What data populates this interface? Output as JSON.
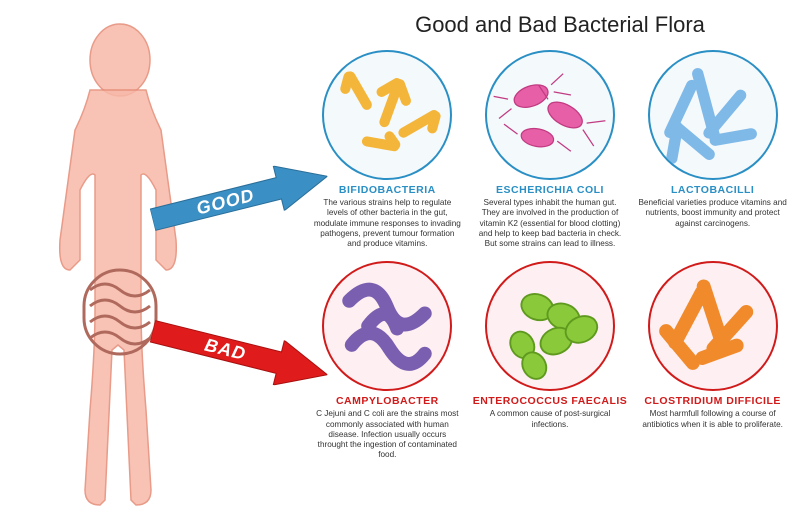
{
  "title": "Good and Bad Bacterial Flora",
  "arrows": {
    "good": {
      "label": "GOOD",
      "fill": "#3a8fc4",
      "stroke": "#2a6e99"
    },
    "bad": {
      "label": "BAD",
      "fill": "#e01b1b",
      "stroke": "#a81010"
    }
  },
  "figure": {
    "body_fill": "#f7b8a8",
    "body_stroke": "#e58a74",
    "gut_stroke": "#b06a5d"
  },
  "row_colors": {
    "good": {
      "border": "#2a8fc4",
      "bg": "#f4f9fc",
      "name": "#2a8fc4"
    },
    "bad": {
      "border": "#d11a1a",
      "bg": "#fdeff2",
      "name": "#d11a1a"
    }
  },
  "cells": [
    {
      "row": "good",
      "name": "BIFIDOBACTERIA",
      "desc": "The various strains help to regulate levels of other bacteria in the gut, modulate immune responses to invading pathogens, prevent tumour formation and produce vitamins.",
      "shape": "bifido",
      "shape_fill": "#f4b63a",
      "shape_stroke": "#c98c1a"
    },
    {
      "row": "good",
      "name": "ESCHERICHIA COLI",
      "desc": "Several types inhabit the human gut. They are involved in the production of vitamin K2 (essential for blood clotting) and help to keep bad bacteria in check. But some strains can lead to illness.",
      "shape": "ecoli",
      "shape_fill": "#e75fa6",
      "shape_stroke": "#c13b82"
    },
    {
      "row": "good",
      "name": "LACTOBACILLI",
      "desc": "Beneficial varieties produce vitamins and nutrients, boost immunity and protect against carcinogens.",
      "shape": "lacto",
      "shape_fill": "#7fb9e8",
      "shape_stroke": "#4a8cc4"
    },
    {
      "row": "bad",
      "name": "CAMPYLOBACTER",
      "desc": "C Jejuni and C coli are the strains most commonly associated with human disease. Infection usually occurs throught the ingestion of contaminated food.",
      "shape": "campylo",
      "shape_fill": "#7a5fb0",
      "shape_stroke": "#563e85"
    },
    {
      "row": "bad",
      "name": "ENTEROCOCCUS FAECALIS",
      "desc": "A common cause of post-surgical infections.",
      "shape": "entero",
      "shape_fill": "#8ac93a",
      "shape_stroke": "#5f9a1f"
    },
    {
      "row": "bad",
      "name": "CLOSTRIDIUM DIFFICILE",
      "desc": "Most harmfull following a course of antibiotics when it is able to proliferate.",
      "shape": "cdiff",
      "shape_fill": "#f08a2a",
      "shape_stroke": "#c36612"
    }
  ]
}
